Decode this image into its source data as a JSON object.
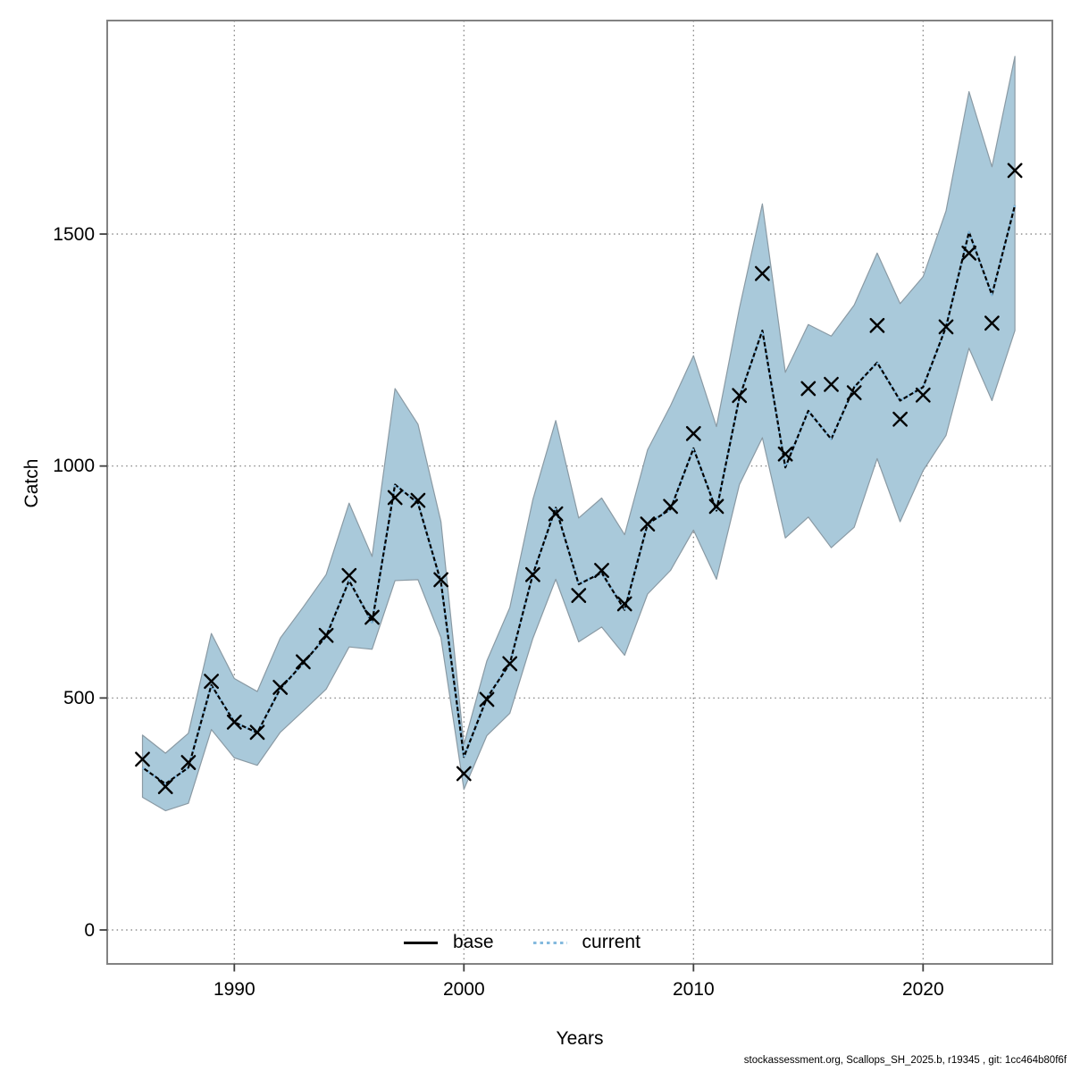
{
  "figure": {
    "footer": "stockassessment.org, Scallops_SH_2025.b, r19345 , git: 1cc464b80f6f"
  },
  "chart_data": {
    "type": "line",
    "title": "",
    "xlabel": "Years",
    "ylabel": "Catch",
    "grid": true,
    "legend_position": "bottom-center",
    "x_ticks": [
      1990,
      2000,
      2010,
      2020
    ],
    "x_tick_labels": [
      "1990",
      "2000",
      "2010",
      "2020"
    ],
    "y_ticks": [
      0,
      500,
      1000,
      1500
    ],
    "y_tick_labels": [
      "0",
      "500",
      "1000",
      "1500"
    ],
    "xlim": [
      1984.5,
      2025.6
    ],
    "ylim": [
      -73,
      1960
    ],
    "years": [
      1986,
      1987,
      1988,
      1989,
      1990,
      1991,
      1992,
      1993,
      1994,
      1995,
      1996,
      1997,
      1998,
      1999,
      2000,
      2001,
      2002,
      2003,
      2004,
      2005,
      2006,
      2007,
      2008,
      2009,
      2010,
      2011,
      2012,
      2013,
      2014,
      2015,
      2016,
      2017,
      2018,
      2019,
      2020,
      2021,
      2022,
      2023,
      2024
    ],
    "series": [
      {
        "name": "base",
        "line_style": "solid",
        "color": "#000000",
        "values": [
          350,
          315,
          350,
          528,
          448,
          425,
          520,
          575,
          633,
          753,
          663,
          960,
          920,
          750,
          373,
          500,
          574,
          766,
          910,
          745,
          770,
          690,
          875,
          907,
          1038,
          904,
          1148,
          1292,
          997,
          1119,
          1058,
          1170,
          1223,
          1141,
          1170,
          1300,
          1504,
          1369,
          1562
        ]
      },
      {
        "name": "current",
        "line_style": "dotted",
        "color": "#84bade",
        "values": [
          350,
          315,
          350,
          528,
          448,
          425,
          520,
          575,
          633,
          753,
          663,
          960,
          920,
          750,
          373,
          500,
          574,
          766,
          910,
          745,
          770,
          690,
          875,
          907,
          1038,
          904,
          1148,
          1292,
          997,
          1119,
          1058,
          1170,
          1223,
          1141,
          1170,
          1300,
          1504,
          1369,
          1562
        ],
        "band_low": [
          286,
          257,
          273,
          432,
          371,
          355,
          426,
          472,
          519,
          610,
          605,
          753,
          755,
          630,
          303,
          419,
          467,
          628,
          756,
          621,
          653,
          592,
          724,
          775,
          862,
          756,
          960,
          1061,
          845,
          890,
          824,
          868,
          1016,
          880,
          990,
          1066,
          1254,
          1141,
          1292
        ],
        "band_high": [
          420,
          381,
          424,
          639,
          542,
          514,
          629,
          696,
          766,
          920,
          805,
          1167,
          1090,
          880,
          400,
          580,
          695,
          927,
          1098,
          888,
          931,
          852,
          1035,
          1130,
          1238,
          1085,
          1340,
          1565,
          1202,
          1305,
          1280,
          1347,
          1459,
          1350,
          1408,
          1550,
          1807,
          1645,
          1883
        ]
      }
    ],
    "observations": {
      "marker": "x",
      "color": "#000000",
      "values": [
        368,
        309,
        361,
        536,
        448,
        426,
        523,
        578,
        635,
        764,
        674,
        932,
        926,
        755,
        337,
        497,
        574,
        766,
        897,
        721,
        775,
        703,
        875,
        913,
        1070,
        913,
        1152,
        1415,
        1026,
        1167,
        1176,
        1158,
        1303,
        1101,
        1153,
        1300,
        1459,
        1308,
        1637
      ]
    },
    "legend": [
      {
        "label": "base",
        "line_style": "solid",
        "color": "#000000"
      },
      {
        "label": "current",
        "line_style": "dotted",
        "color": "#84bade"
      }
    ],
    "colors": {
      "band": "#a9c9da",
      "band_edge": "#8a9aa4",
      "grid": "#777777",
      "frame": "#828282",
      "tick": "#404040",
      "text": "#000000"
    }
  }
}
